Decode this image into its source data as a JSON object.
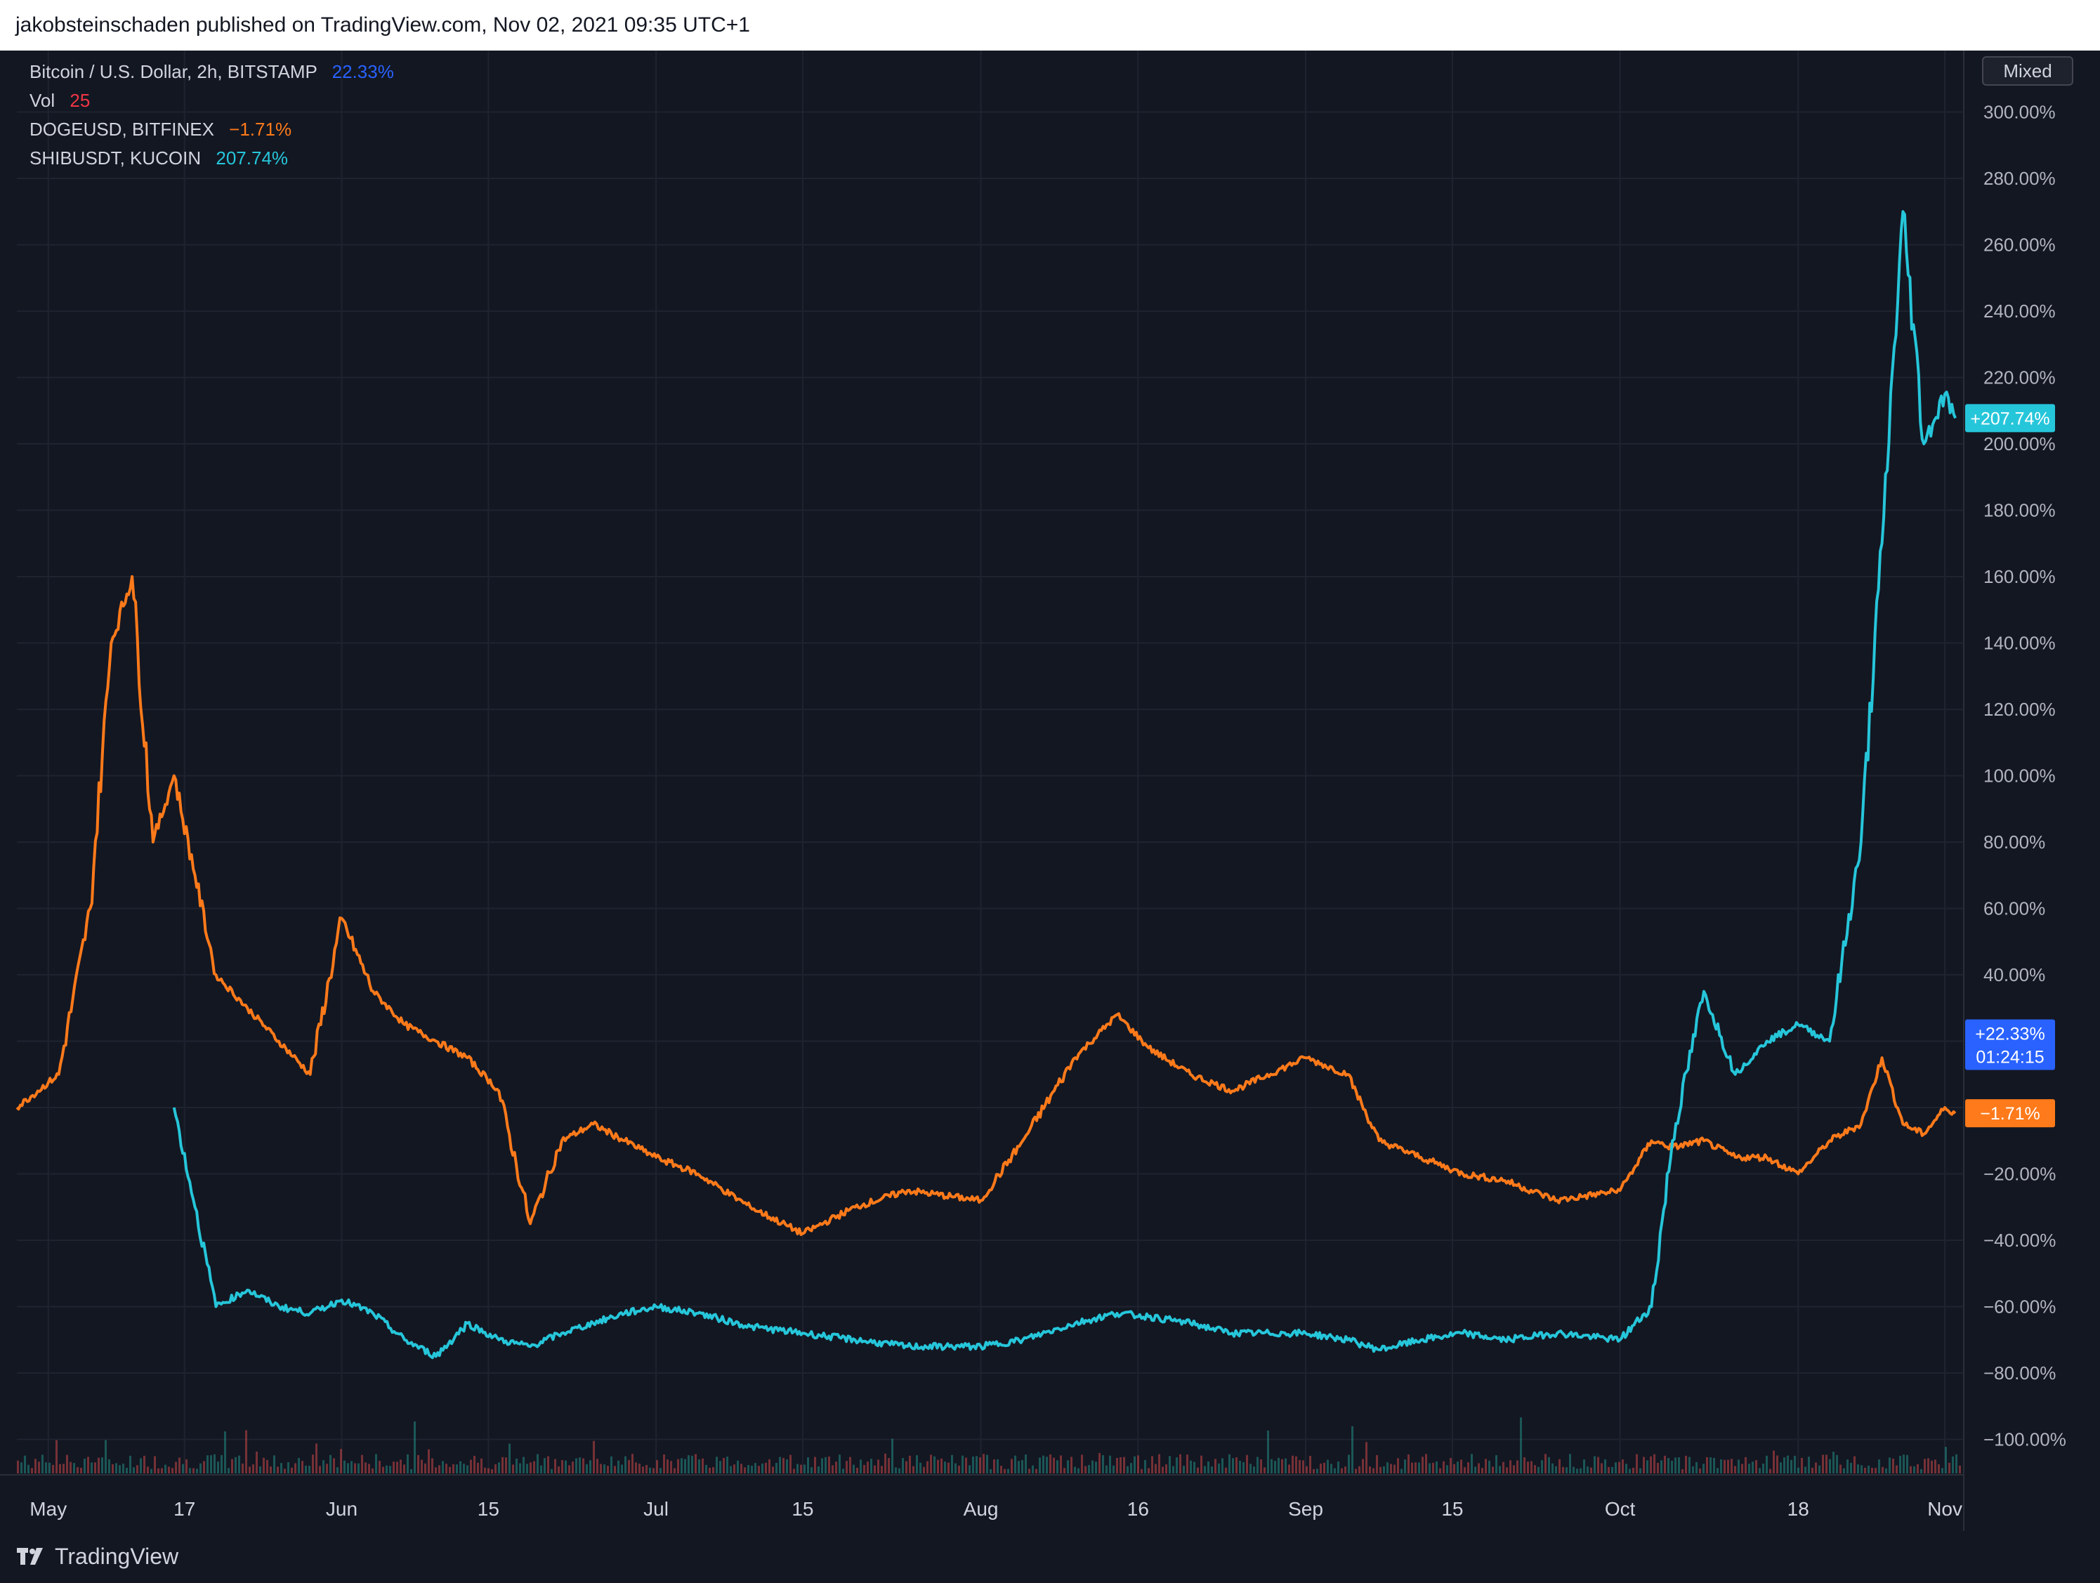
{
  "header": {
    "text": "jakobsteinschaden published on TradingView.com, Nov 02, 2021 09:35 UTC+1"
  },
  "legend": [
    {
      "label": "Bitcoin / U.S. Dollar, 2h, BITSTAMP",
      "value": "22.33%",
      "color": "#2962ff"
    },
    {
      "label": "Vol",
      "value": "25",
      "color": "#f23645"
    },
    {
      "label": "DOGEUSD, BITFINEX",
      "value": "−1.71%",
      "color": "#ff7a1a"
    },
    {
      "label": "SHIBUSDT, KUCOIN",
      "value": "207.74%",
      "color": "#26c6da"
    }
  ],
  "scale_button": "Mixed",
  "brand": "TradingView",
  "chart_data": {
    "type": "line",
    "x_ticks": [
      "May",
      "17",
      "Jun",
      "15",
      "Jul",
      "15",
      "Aug",
      "16",
      "Sep",
      "15",
      "Oct",
      "18",
      "Nov"
    ],
    "y_ticks": [
      "300.00%",
      "280.00%",
      "260.00%",
      "240.00%",
      "220.00%",
      "200.00%",
      "180.00%",
      "160.00%",
      "140.00%",
      "120.00%",
      "100.00%",
      "80.00%",
      "60.00%",
      "40.00%",
      "20.00%",
      "0.00%",
      "−20.00%",
      "−40.00%",
      "−60.00%",
      "−80.00%",
      "−100.00%"
    ],
    "ylim": [
      -110,
      310
    ],
    "x": [
      "May 01",
      "May 05",
      "May 08",
      "May 10",
      "May 12",
      "May 14",
      "May 16",
      "May 18",
      "May 20",
      "May 23",
      "May 26",
      "May 29",
      "Jun 01",
      "Jun 04",
      "Jun 07",
      "Jun 10",
      "Jun 13",
      "Jun 16",
      "Jun 19",
      "Jun 22",
      "Jun 25",
      "Jun 28",
      "Jul 01",
      "Jul 05",
      "Jul 10",
      "Jul 15",
      "Jul 20",
      "Jul 25",
      "Aug 01",
      "Aug 05",
      "Aug 10",
      "Aug 14",
      "Aug 17",
      "Aug 21",
      "Aug 25",
      "Sep 01",
      "Sep 05",
      "Sep 08",
      "Sep 12",
      "Sep 16",
      "Sep 20",
      "Sep 25",
      "Oct 01",
      "Oct 04",
      "Oct 06",
      "Oct 09",
      "Oct 12",
      "Oct 15",
      "Oct 18",
      "Oct 21",
      "Oct 24",
      "Oct 26",
      "Oct 28",
      "Oct 30",
      "Nov 01",
      "Nov 02"
    ],
    "series": [
      {
        "name": "DOGEUSD, BITFINEX",
        "color": "#ff7a1a",
        "values": [
          0,
          10,
          60,
          140,
          160,
          80,
          100,
          70,
          40,
          30,
          20,
          10,
          57,
          35,
          25,
          20,
          15,
          5,
          -35,
          -10,
          -5,
          -10,
          -15,
          -20,
          -30,
          -38,
          -30,
          -25,
          -28,
          -10,
          15,
          28,
          18,
          10,
          5,
          15,
          10,
          -10,
          -15,
          -20,
          -22,
          -28,
          -25,
          -10,
          -12,
          -10,
          -15,
          -15,
          -20,
          -10,
          -5,
          15,
          -5,
          -8,
          0,
          -1.71
        ]
      },
      {
        "name": "SHIBUSDT, KUCOIN",
        "color": "#26c6da",
        "values": [
          null,
          null,
          null,
          null,
          null,
          null,
          0,
          -30,
          -60,
          -55,
          -60,
          -62,
          -58,
          -62,
          -70,
          -75,
          -65,
          -70,
          -72,
          -68,
          -65,
          -62,
          -60,
          -62,
          -66,
          -68,
          -70,
          -72,
          -72,
          -70,
          -65,
          -62,
          -63,
          -65,
          -68,
          -68,
          -70,
          -73,
          -70,
          -68,
          -70,
          -68,
          -70,
          -60,
          -10,
          35,
          10,
          20,
          25,
          20,
          80,
          170,
          270,
          200,
          215,
          207.74
        ]
      }
    ],
    "volume_color_up": "#26a69a",
    "volume_color_down": "#ef5350",
    "price_tags": [
      {
        "text": "+207.74%",
        "value": 207.74,
        "color": "#26c6da"
      },
      {
        "text": "+22.33%",
        "sub": "01:24:15",
        "value": 22.33,
        "color": "#2962ff"
      },
      {
        "text": "−1.71%",
        "value": -1.71,
        "color": "#ff7a1a"
      }
    ]
  }
}
